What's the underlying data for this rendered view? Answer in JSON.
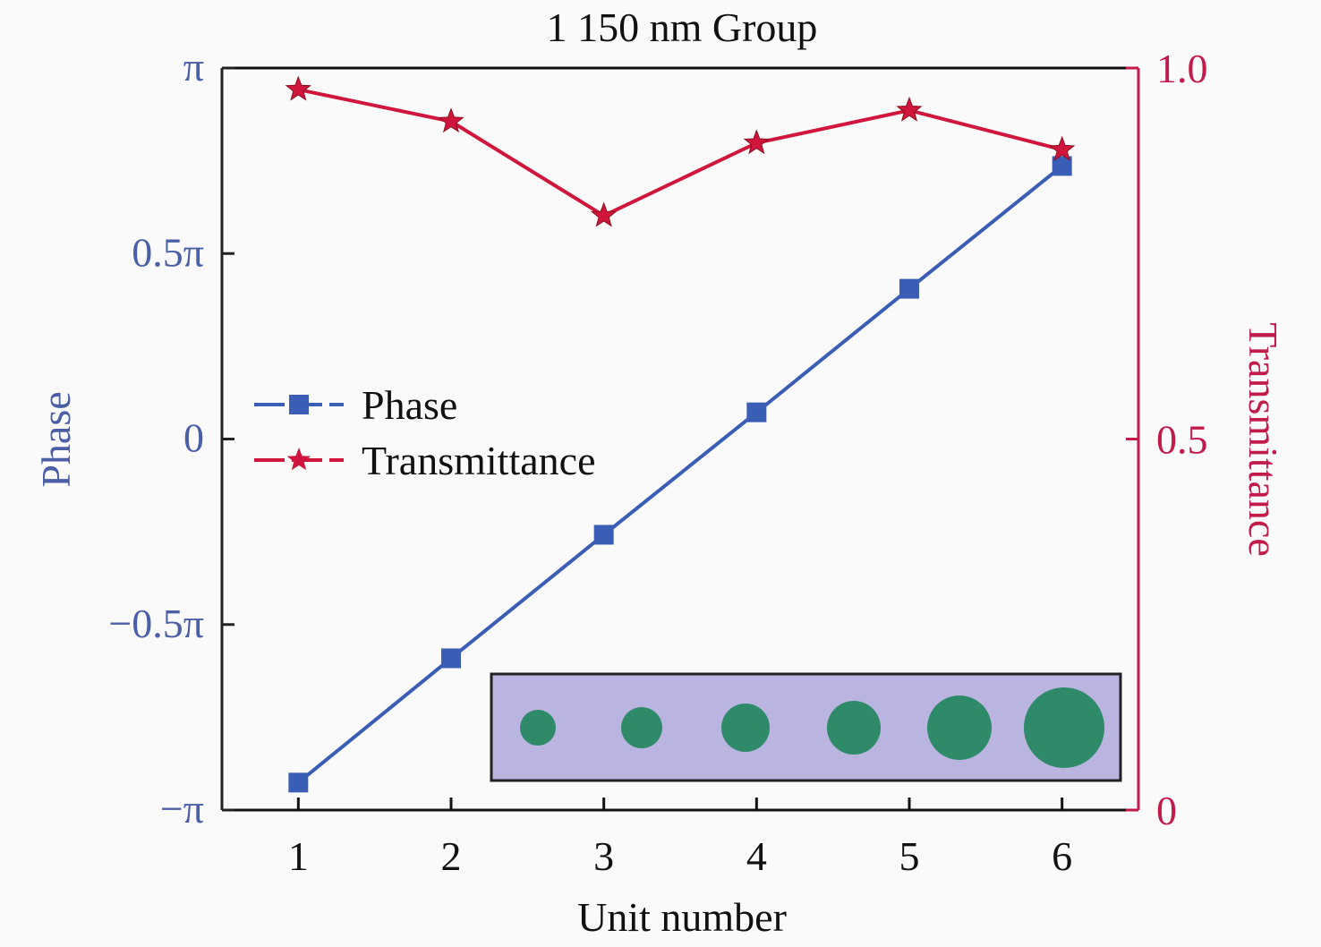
{
  "chart_data": {
    "type": "line",
    "title": "1 150 nm Group",
    "xlabel": "Unit number",
    "ylabel_left": "Phase",
    "ylabel_right": "Transmittance",
    "x": [
      1,
      2,
      3,
      4,
      5,
      6
    ],
    "xlim": [
      0.5,
      6.5
    ],
    "xticks": [
      "1",
      "2",
      "3",
      "4",
      "5",
      "6"
    ],
    "ylim_left": [
      -1,
      1
    ],
    "ylim_left_unit": "π",
    "yticks_left": [
      {
        "value": 1,
        "label": "π"
      },
      {
        "value": 0.5,
        "label": "0.5π"
      },
      {
        "value": 0,
        "label": "0"
      },
      {
        "value": -0.5,
        "label": "−0.5π"
      },
      {
        "value": -1,
        "label": "−π"
      }
    ],
    "ylim_right": [
      0,
      1
    ],
    "yticks_right": [
      {
        "value": 1,
        "label": "1.0"
      },
      {
        "value": 0.5,
        "label": "0.5"
      },
      {
        "value": 0,
        "label": "0"
      }
    ],
    "series": [
      {
        "name": "Phase",
        "axis": "left",
        "marker": "square",
        "color": "#3a5db5",
        "values": [
          -0.926,
          -0.591,
          -0.258,
          0.072,
          0.405,
          0.736
        ]
      },
      {
        "name": "Transmittance",
        "axis": "right",
        "marker": "star",
        "color": "#d0163c",
        "values": [
          0.971,
          0.928,
          0.801,
          0.899,
          0.943,
          0.89
        ]
      }
    ],
    "legend": "center-left",
    "grid": false,
    "colors": {
      "left_axis_text": "#4a5fa6",
      "right_axis_text": "#c21a4a",
      "inset_background": "#b9b5e0",
      "inset_pillars": "#2f8a6a"
    }
  }
}
